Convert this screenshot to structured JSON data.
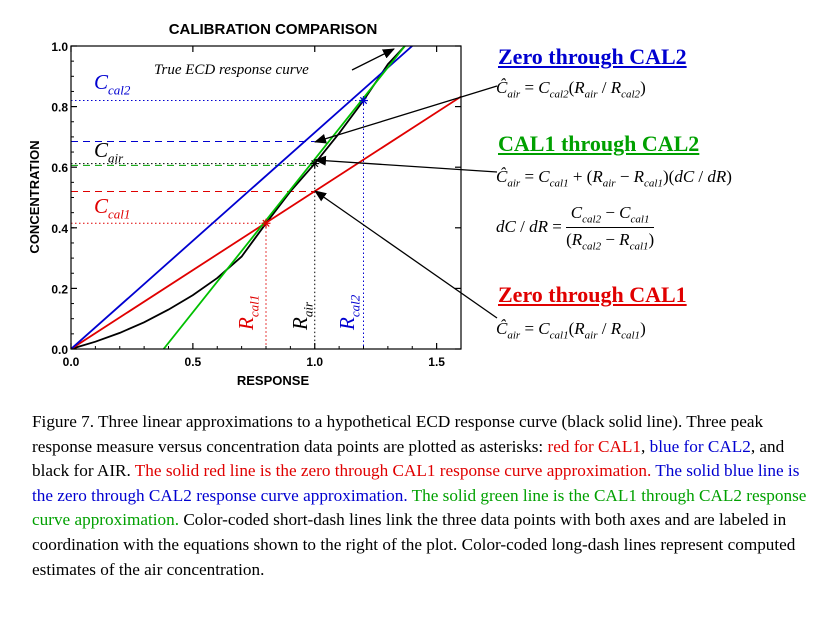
{
  "chart_data": {
    "type": "line",
    "title": "CALIBRATION COMPARISON",
    "xlabel": "RESPONSE",
    "ylabel": "CONCENTRATION",
    "xlim": [
      0,
      1.6
    ],
    "ylim": [
      0,
      1.0
    ],
    "xticks": [
      0.0,
      0.5,
      1.0,
      1.5
    ],
    "xtick_labels": [
      "0.0",
      "0.5",
      "1.0",
      "1.5"
    ],
    "yticks": [
      0.0,
      0.2,
      0.4,
      0.6,
      0.8,
      1.0
    ],
    "ytick_labels": [
      "0.0",
      "0.2",
      "0.4",
      "0.6",
      "0.8",
      "1.0"
    ],
    "series": [
      {
        "color": "#000000",
        "x": [
          0,
          0.1,
          0.2,
          0.3,
          0.4,
          0.5,
          0.6,
          0.7,
          0.8,
          0.9,
          1.0,
          1.1,
          1.2,
          1.3,
          1.37
        ],
        "y": [
          0,
          0.024,
          0.053,
          0.088,
          0.13,
          0.178,
          0.234,
          0.305,
          0.415,
          0.52,
          0.612,
          0.712,
          0.82,
          0.94,
          1.0
        ]
      },
      {
        "color": "#e00000",
        "x": [
          0,
          1.6
        ],
        "y": [
          0,
          0.833
        ]
      },
      {
        "color": "#0000d0",
        "x": [
          0,
          1.4
        ],
        "y": [
          0,
          1.0
        ]
      },
      {
        "color": "#00c000",
        "x": [
          0.38,
          1.37
        ],
        "y": [
          0,
          1.0
        ]
      }
    ],
    "points": [
      {
        "x": 0.8,
        "y": 0.415,
        "color": "#e00000"
      },
      {
        "x": 1.0,
        "y": 0.612,
        "color": "#000000"
      },
      {
        "x": 1.2,
        "y": 0.82,
        "color": "#0000d0"
      }
    ],
    "dash_long": [
      {
        "y": 0.685,
        "x2": 1.0,
        "color": "#0000d0"
      },
      {
        "y": 0.606,
        "x2": 1.0,
        "color": "#00a000"
      },
      {
        "y": 0.52,
        "x2": 1.0,
        "color": "#e00000"
      }
    ],
    "dash_short": [
      {
        "x": 0.8,
        "y": 0.415,
        "color": "#e00000"
      },
      {
        "x": 1.0,
        "y": 0.612,
        "color": "#000000"
      },
      {
        "x": 1.2,
        "y": 0.82,
        "color": "#0000d0"
      }
    ],
    "annotations": {
      "curve_label": "True ECD response curve",
      "c_cal2": "C",
      "c_cal2_sub": "cal2",
      "c_air": "C",
      "c_air_sub": "air",
      "c_cal1": "C",
      "c_cal1_sub": "cal1",
      "r_cal1": "R",
      "r_cal1_sub": "cal1",
      "r_air": "R",
      "r_air_sub": "air",
      "r_cal2": "R",
      "r_cal2_sub": "cal2"
    },
    "colors": {
      "red": "#e00000",
      "blue": "#0000d0",
      "green": "#00a000",
      "black": "#000000"
    }
  },
  "equations": {
    "zero_cal2": {
      "heading": "Zero through CAL2"
    },
    "cal1_cal2": {
      "heading": "CAL1 through CAL2"
    },
    "zero_cal1": {
      "heading": "Zero through CAL1"
    }
  },
  "caption": {
    "p1": "Figure 7. Three linear approximations to a hypothetical ECD response curve (black solid line). Three peak response measure versus concentration data points are plotted as asterisks: ",
    "red_for": "red for CAL1",
    "sep1": ", ",
    "blue_for": "blue for CAL2",
    "p2": ", and black for AIR. ",
    "red_line": "The solid red line is the zero through CAL1 response curve approximation.",
    "blue_line": " The solid blue line is the zero through CAL2 response curve approximation.",
    "green_line": " The solid green line is the CAL1 through CAL2 response curve approximation.",
    "p3": " Color-coded short-dash lines link the three data points with both axes and are labeled in coordination with the equations shown to the right of the plot. Color-coded long-dash lines represent computed estimates of the air concentration."
  }
}
